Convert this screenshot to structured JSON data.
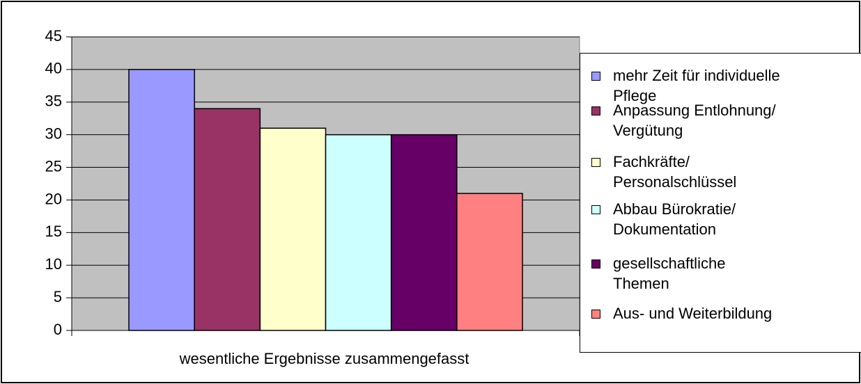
{
  "chart_data": {
    "type": "bar",
    "categories": [
      "wesentliche Ergebnisse zusammengefasst"
    ],
    "series": [
      {
        "name": "mehr Zeit für individuelle\nPflege",
        "color": "#9999ff",
        "values": [
          40
        ]
      },
      {
        "name": "Anpassung Entlohnung/\nVergütung",
        "color": "#993366",
        "values": [
          34
        ]
      },
      {
        "name": "Fachkräfte/\nPersonalschlüssel",
        "color": "#ffffcc",
        "values": [
          31
        ]
      },
      {
        "name": "Abbau Bürokratie/\nDokumentation",
        "color": "#ccffff",
        "values": [
          30
        ]
      },
      {
        "name": "gesellschaftliche\nThemen",
        "color": "#660066",
        "values": [
          30
        ]
      },
      {
        "name": "Aus- und Weiterbildung",
        "color": "#ff8080",
        "values": [
          21
        ]
      }
    ],
    "ylim": [
      0,
      45
    ],
    "yticks": [
      0,
      5,
      10,
      15,
      20,
      25,
      30,
      35,
      40,
      45
    ],
    "grid": true,
    "plot_background": "#c0c0c0",
    "legend": "right"
  }
}
